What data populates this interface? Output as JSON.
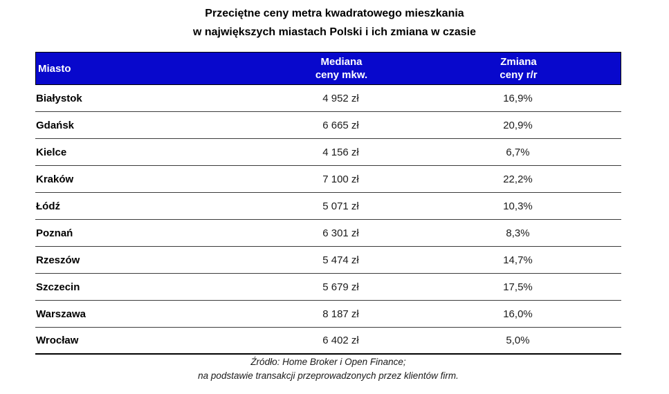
{
  "title": {
    "line1": "Przeciętne ceny metra kwadratowego mieszkania",
    "line2": "w największych miastach Polski i ich zmiana w czasie"
  },
  "table": {
    "header": {
      "miasto": "Miasto",
      "mediana_line1": "Mediana",
      "mediana_line2": "ceny mkw.",
      "zmiana_line1": "Zmiana",
      "zmiana_line2": "ceny r/r"
    },
    "rows": [
      {
        "city": "Białystok",
        "median_price": "4 952 zł",
        "yoy_change": "16,9%"
      },
      {
        "city": "Gdańsk",
        "median_price": "6 665 zł",
        "yoy_change": "20,9%"
      },
      {
        "city": "Kielce",
        "median_price": "4 156 zł",
        "yoy_change": "6,7%"
      },
      {
        "city": "Kraków",
        "median_price": "7 100 zł",
        "yoy_change": "22,2%"
      },
      {
        "city": "Łódź",
        "median_price": "5 071 zł",
        "yoy_change": "10,3%"
      },
      {
        "city": "Poznań",
        "median_price": "6 301 zł",
        "yoy_change": "8,3%"
      },
      {
        "city": "Rzeszów",
        "median_price": "5 474 zł",
        "yoy_change": "14,7%"
      },
      {
        "city": "Szczecin",
        "median_price": "5 679 zł",
        "yoy_change": "17,5%"
      },
      {
        "city": "Warszawa",
        "median_price": "8 187 zł",
        "yoy_change": "16,0%"
      },
      {
        "city": "Wrocław",
        "median_price": "6 402 zł",
        "yoy_change": "5,0%"
      }
    ]
  },
  "source": {
    "line1": "Źródło: Home Broker i Open Finance;",
    "line2": "na podstawie transakcji przeprowadzonych przez klientów firm."
  },
  "colors": {
    "header_bg": "#0808CC",
    "header_text": "#FFFFFF",
    "row_line": "#3a3a3a",
    "text": "#1a1a1a"
  },
  "chart_data": {
    "type": "table",
    "title": "Przeciętne ceny metra kwadratowego mieszkania w największych miastach Polski i ich zmiana w czasie",
    "columns": [
      "Miasto",
      "Mediana ceny mkw.",
      "Zmiana ceny r/r"
    ],
    "categories": [
      "Białystok",
      "Gdańsk",
      "Kielce",
      "Kraków",
      "Łódź",
      "Poznań",
      "Rzeszów",
      "Szczecin",
      "Warszawa",
      "Wrocław"
    ],
    "series": [
      {
        "name": "Mediana ceny mkw. (zł)",
        "values": [
          4952,
          6665,
          4156,
          7100,
          5071,
          6301,
          5474,
          5679,
          8187,
          6402
        ]
      },
      {
        "name": "Zmiana ceny r/r (%)",
        "values": [
          16.9,
          20.9,
          6.7,
          22.2,
          10.3,
          8.3,
          14.7,
          17.5,
          16.0,
          5.0
        ]
      }
    ],
    "source": "Źródło: Home Broker i Open Finance; na podstawie transakcji przeprowadzonych przez klientów firm."
  }
}
